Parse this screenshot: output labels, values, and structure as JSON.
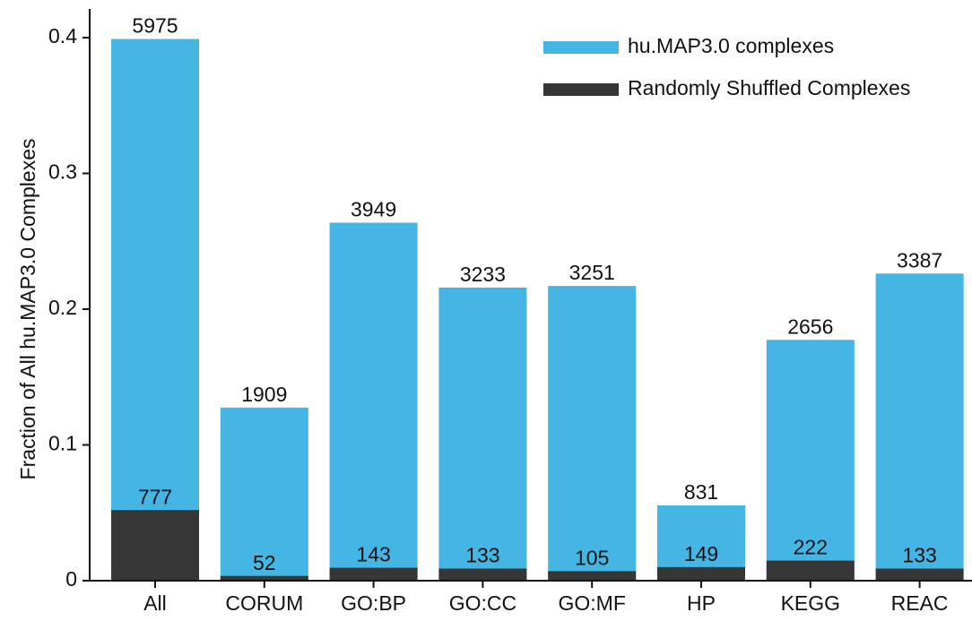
{
  "chart_data": {
    "type": "bar",
    "y_label": "Fraction of All hu.MAP3.0 Complexes",
    "categories": [
      "All",
      "CORUM",
      "GO:BP",
      "GO:CC",
      "GO:MF",
      "HP",
      "KEGG",
      "REAC"
    ],
    "series": [
      {
        "name": "hu.MAP3.0 complexes",
        "color": "#45b5e3",
        "values": [
          0.399,
          0.1275,
          0.2637,
          0.2159,
          0.2171,
          0.0555,
          0.1774,
          0.2262
        ],
        "counts": [
          5975,
          1909,
          3949,
          3233,
          3251,
          831,
          2656,
          3387
        ]
      },
      {
        "name": "Randomly Shuffled Complexes",
        "color": "#363636",
        "values": [
          0.052,
          0.0035,
          0.0095,
          0.0089,
          0.007,
          0.01,
          0.0148,
          0.0089
        ],
        "counts": [
          777,
          52,
          143,
          133,
          105,
          149,
          222,
          133
        ]
      }
    ],
    "ylim": [
      0,
      0.4
    ],
    "yticks": [
      0,
      0.1,
      0.2,
      0.3,
      0.4
    ],
    "grid": false,
    "legend": "upper right"
  }
}
